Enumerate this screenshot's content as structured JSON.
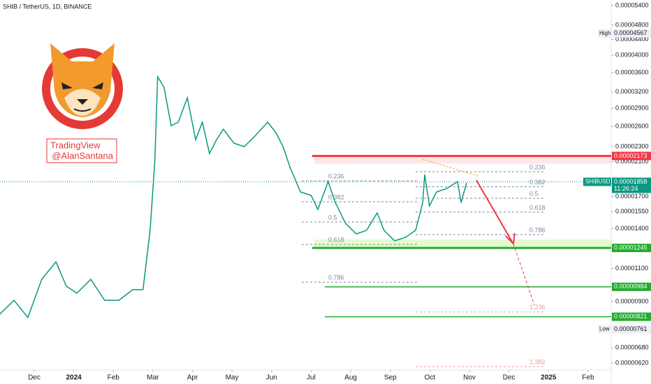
{
  "chart_data": {
    "type": "line",
    "title": "SHIB / TetherUS, 1D, BINANCE",
    "watermark": [
      "TradingView",
      "@AlanSantana"
    ],
    "color": "#089981",
    "log_scale": true,
    "x": [
      -0.87,
      -0.51,
      -0.16,
      0.19,
      0.55,
      0.81,
      1.08,
      1.43,
      1.78,
      2.14,
      2.49,
      2.75,
      2.93,
      3.05,
      3.12,
      3.28,
      3.46,
      3.64,
      3.87,
      4.08,
      4.25,
      4.43,
      4.61,
      4.78,
      5.05,
      5.31,
      5.58,
      5.9,
      6.11,
      6.29,
      6.47,
      6.73,
      7.0,
      7.17,
      7.43,
      7.61,
      7.87,
      8.14,
      8.4,
      8.67,
      8.84,
      9.11,
      9.38,
      9.64,
      9.82,
      9.87,
      9.99,
      10.17,
      10.43,
      10.7,
      10.79,
      10.93
    ],
    "values": [
      8.34e-06,
      9.07e-06,
      8.17e-06,
      1.03e-05,
      1.145e-05,
      9.88e-06,
      9.47e-06,
      1.03e-05,
      9.07e-06,
      9.07e-06,
      9.67e-06,
      9.67e-06,
      1.385e-05,
      2.114e-05,
      3.51e-05,
      3.294e-05,
      2.61e-05,
      2.666e-05,
      3.091e-05,
      2.399e-05,
      2.666e-05,
      2.204e-05,
      2.399e-05,
      2.556e-05,
      2.348e-05,
      2.299e-05,
      2.451e-05,
      2.666e-05,
      2.502e-05,
      2.299e-05,
      2.026e-05,
      1.747e-05,
      1.711e-05,
      1.572e-05,
      1.861e-05,
      1.64e-05,
      1.445e-05,
      1.356e-05,
      1.385e-05,
      1.539e-05,
      1.385e-05,
      1.3e-05,
      1.327e-05,
      1.385e-05,
      1.64e-05,
      1.942e-05,
      1.606e-05,
      1.747e-05,
      1.785e-05,
      1.861e-05,
      1.64e-05,
      1.846e-05
    ],
    "xlim": [
      -0.865,
      14.584
    ],
    "xticks": [
      {
        "value": 0,
        "label": "Dec"
      },
      {
        "value": 1,
        "label": "2024"
      },
      {
        "value": 2,
        "label": "Feb"
      },
      {
        "value": 3,
        "label": "Mar"
      },
      {
        "value": 4,
        "label": "Apr"
      },
      {
        "value": 5,
        "label": "May"
      },
      {
        "value": 6,
        "label": "Jun"
      },
      {
        "value": 7,
        "label": "Jul"
      },
      {
        "value": 8,
        "label": "Aug"
      },
      {
        "value": 9,
        "label": "Sep"
      },
      {
        "value": 10,
        "label": "Oct"
      },
      {
        "value": 11,
        "label": "Nov"
      },
      {
        "value": 12,
        "label": "Dec"
      },
      {
        "value": 13,
        "label": "2025"
      },
      {
        "value": 14,
        "label": "Feb"
      }
    ],
    "ylim": [
      5.946e-06,
      5.586e-05
    ],
    "yticks": [
      {
        "value": 5.4e-05,
        "label": "0.00005400"
      },
      {
        "value": 4.8e-05,
        "label": "0.00004800"
      },
      {
        "value": 4.4e-05,
        "label": "0.00004400"
      },
      {
        "value": 4e-05,
        "label": "0.00004000"
      },
      {
        "value": 3.6e-05,
        "label": "0.00003600"
      },
      {
        "value": 3.2e-05,
        "label": "0.00003200"
      },
      {
        "value": 2.9e-05,
        "label": "0.00002900"
      },
      {
        "value": 2.6e-05,
        "label": "0.00002600"
      },
      {
        "value": 2.3e-05,
        "label": "0.00002300"
      },
      {
        "value": 2.1e-05,
        "label": "0.00002100"
      },
      {
        "value": 1.7e-05,
        "label": "0.00001700"
      },
      {
        "value": 1.55e-05,
        "label": "0.00001550"
      },
      {
        "value": 1.4e-05,
        "label": "0.00001400"
      },
      {
        "value": 1.1e-05,
        "label": "0.00001100"
      },
      {
        "value": 9e-06,
        "label": "0.00000900"
      },
      {
        "value": 6.8e-06,
        "label": "0.00000680"
      },
      {
        "value": 6.2e-06,
        "label": "0.00000620"
      }
    ],
    "levels": [
      {
        "value": 2.173e-05,
        "label": "0.00002173",
        "color": "#f23645"
      },
      {
        "value": 1.245e-05,
        "label": "0.00001245",
        "color": "#22ab2e"
      },
      {
        "value": 9.84e-06,
        "label": "0.00000984",
        "color": "#22ab2e"
      },
      {
        "value": 8.21e-06,
        "label": "0.00000821",
        "color": "#22ab2e"
      }
    ],
    "current": {
      "name": "SHIBUSDT",
      "value": 1.858e-05,
      "label": "0.00001858",
      "countdown": "11:26:24"
    },
    "high": {
      "name": "High",
      "value": 4.567e-05,
      "label": "0.00004567"
    },
    "low": {
      "name": "Low",
      "value": 7.61e-06,
      "label": "0.00000761"
    },
    "fib_left": [
      {
        "label": "0.236",
        "value": 1.869e-05
      },
      {
        "label": "0.382",
        "value": 1.647e-05
      },
      {
        "label": "0.5",
        "value": 1.457e-05
      },
      {
        "label": "0.618",
        "value": 1.272e-05
      },
      {
        "label": "0.786",
        "value": 1.012e-05
      }
    ],
    "fib_right": [
      {
        "label": "0.236",
        "value": 1.975e-05
      },
      {
        "label": "0.382",
        "value": 1.804e-05
      },
      {
        "label": "0.5",
        "value": 1.682e-05
      },
      {
        "label": "0.618",
        "value": 1.546e-05
      },
      {
        "label": "0.786",
        "value": 1.35e-05
      }
    ],
    "fib_ext": [
      {
        "label": "1.236",
        "value": 8.45e-06
      },
      {
        "label": "1.382",
        "value": 6.07e-06
      }
    ]
  }
}
